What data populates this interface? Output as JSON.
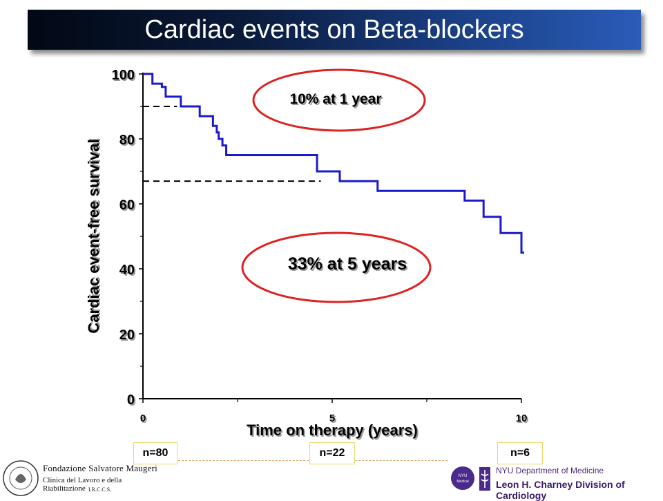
{
  "title": "Cardiac events on Beta-blockers",
  "colors": {
    "curve": "#1a1acc",
    "ellipse": "#dd2222",
    "dash": "#000000",
    "title_bg": "#0a1a3a"
  },
  "chart_data": {
    "type": "line",
    "title": "Cardiac events on Beta-blockers",
    "xlabel": "Time on therapy (years)",
    "ylabel": "Cardiac event-free survival",
    "xlim": [
      0,
      10
    ],
    "ylim": [
      0,
      100
    ],
    "x_ticks": [
      "0",
      "5",
      "10"
    ],
    "y_ticks": [
      "0",
      "20",
      "40",
      "60",
      "80",
      "100"
    ],
    "x_tick_values": [
      0,
      5,
      10
    ],
    "y_tick_values": [
      0,
      20,
      40,
      60,
      80,
      100
    ],
    "grid": false,
    "step": true,
    "series": [
      {
        "x": [
          0,
          0.25,
          0.5,
          0.6,
          1.0,
          1.5,
          1.85,
          1.95,
          2.0,
          2.1,
          2.2,
          4.0,
          4.6,
          5.2,
          6.2,
          8.5,
          9.0,
          9.45,
          10.0
        ],
        "y": [
          100,
          97,
          96,
          93,
          90,
          87,
          84,
          82,
          80,
          78,
          75,
          75,
          70,
          67,
          64,
          61,
          56,
          51,
          45
        ]
      }
    ],
    "annotations": [
      {
        "text": "10% at 1 year",
        "x": 0.9,
        "y": 90
      },
      {
        "text": "33% at 5 years",
        "x": 4.7,
        "y": 67
      }
    ],
    "at_risk": [
      {
        "label": "n=80",
        "x": 0
      },
      {
        "label": "n=22",
        "x": 5
      },
      {
        "label": "n=6",
        "x": 10
      }
    ]
  },
  "logos": {
    "left": {
      "line1": "Fondazione Salvatore Maugeri",
      "line2": "Clinica del Lavoro e della Riabilitazione",
      "line3": "I.R.C.C.S."
    },
    "right": {
      "badge": "NYU Medical Center",
      "dept": "NYU Department of Medicine",
      "division": "Leon H. Charney Division of Cardiology"
    }
  }
}
